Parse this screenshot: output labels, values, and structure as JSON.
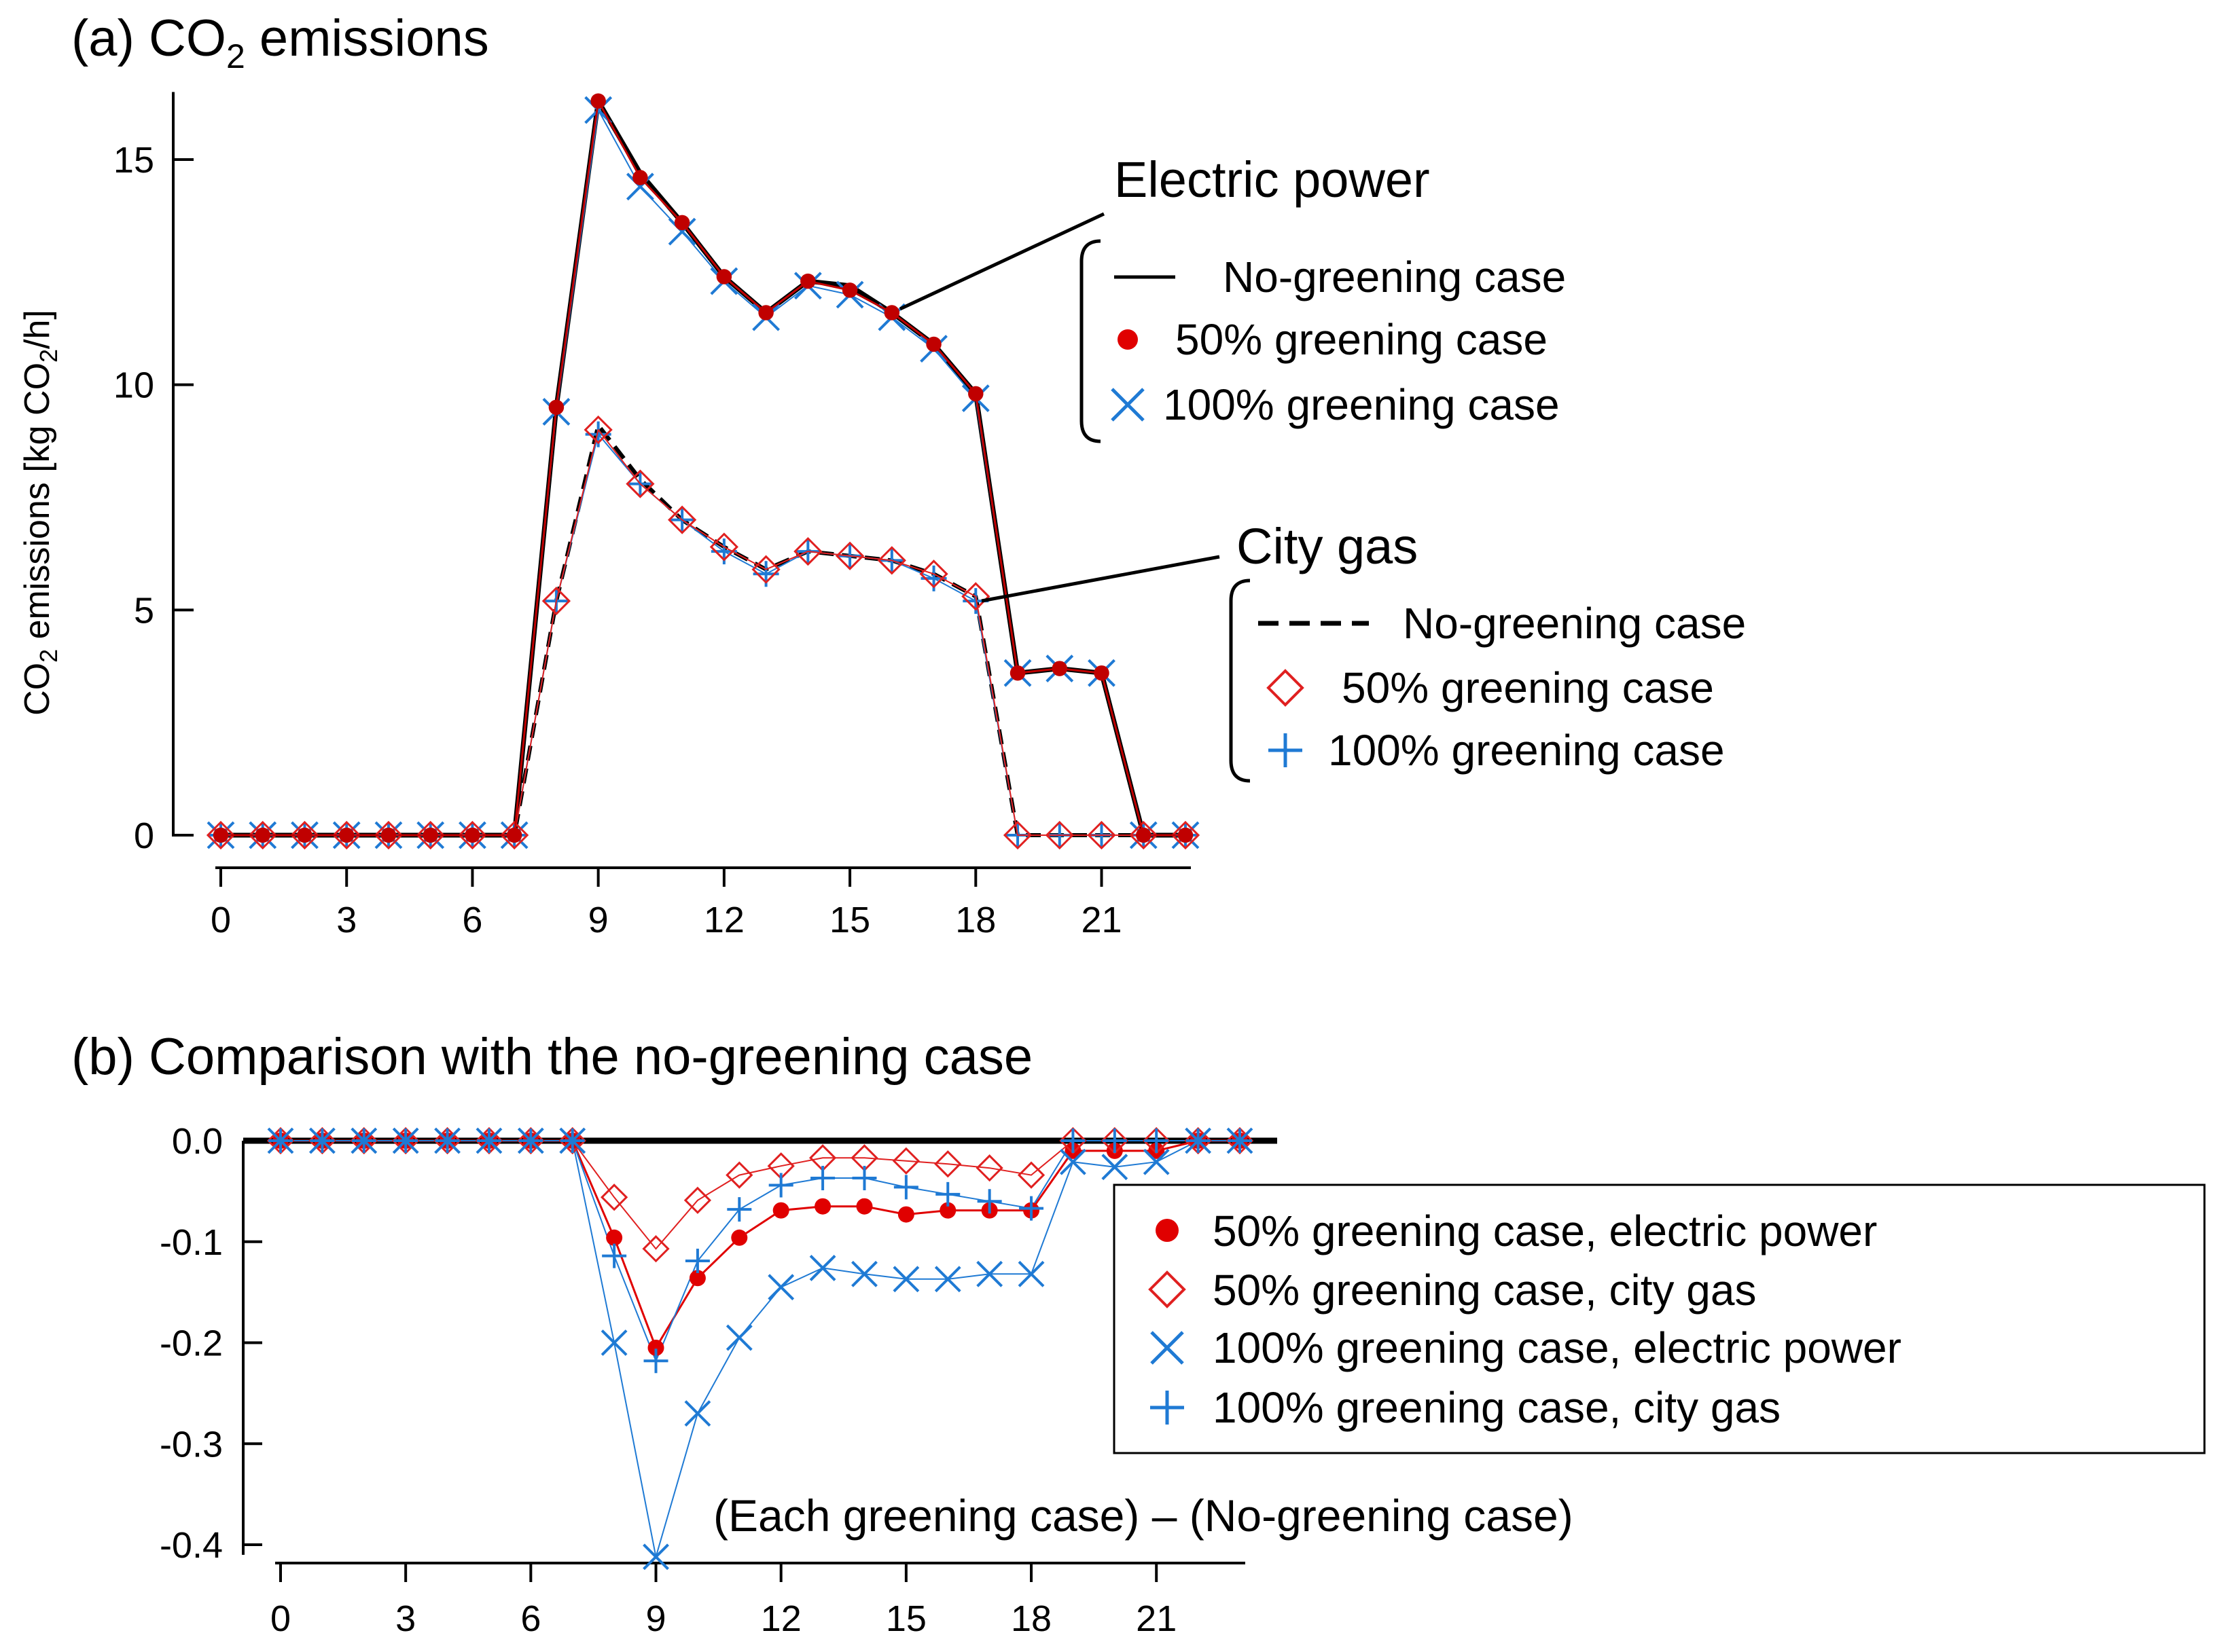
{
  "chart_data": [
    {
      "id": "a",
      "type": "line",
      "title": "(a) CO",
      "title_sub": "2",
      "title_rest": " emissions",
      "ylabel_pre": "CO",
      "ylabel_sub": "2",
      "ylabel_mid": " emissions [kg CO",
      "ylabel_sub2": "2",
      "ylabel_post": "/h]",
      "xlabel": "",
      "xlim": [
        0,
        23
      ],
      "ylim": [
        0,
        16.5
      ],
      "yticks": [
        0,
        5,
        10,
        15
      ],
      "xticks": [
        0,
        3,
        6,
        9,
        12,
        15,
        18,
        21
      ],
      "x": [
        0,
        1,
        2,
        3,
        4,
        5,
        6,
        7,
        8,
        9,
        10,
        11,
        12,
        13,
        14,
        15,
        16,
        17,
        18,
        19,
        20,
        21,
        22,
        23
      ],
      "series": [
        {
          "name": "Electric power No-greening case",
          "style": "solid",
          "color": "#000000",
          "values": [
            0,
            0,
            0,
            0,
            0,
            0,
            0,
            0,
            9.5,
            16.3,
            14.7,
            13.6,
            12.4,
            11.6,
            12.3,
            12.2,
            11.6,
            10.9,
            9.8,
            3.6,
            3.7,
            3.6,
            0,
            0
          ]
        },
        {
          "name": "Electric power 50% greening case",
          "style": "line-dot",
          "color": "#c00000",
          "values": [
            0,
            0,
            0,
            0,
            0,
            0,
            0,
            0,
            9.5,
            16.3,
            14.6,
            13.6,
            12.4,
            11.6,
            12.3,
            12.1,
            11.6,
            10.9,
            9.8,
            3.6,
            3.7,
            3.6,
            0,
            0
          ]
        },
        {
          "name": "Electric power 100% greening case",
          "style": "line-x",
          "color": "#1f7ad4",
          "values": [
            0,
            0,
            0,
            0,
            0,
            0,
            0,
            0,
            9.4,
            16.1,
            14.4,
            13.4,
            12.3,
            11.5,
            12.2,
            12.0,
            11.5,
            10.8,
            9.7,
            3.6,
            3.7,
            3.6,
            0,
            0
          ]
        },
        {
          "name": "City gas No-greening case",
          "style": "dashed",
          "color": "#000000",
          "values": [
            0,
            0,
            0,
            0,
            0,
            0,
            0,
            0,
            5.2,
            9.1,
            7.9,
            7.0,
            6.4,
            5.9,
            6.3,
            6.2,
            6.1,
            5.8,
            5.3,
            0,
            0,
            0,
            0,
            0
          ]
        },
        {
          "name": "City gas 50% greening case",
          "style": "line-diamond",
          "color": "#e02020",
          "values": [
            0,
            0,
            0,
            0,
            0,
            0,
            0,
            0,
            5.2,
            9.0,
            7.8,
            7.0,
            6.4,
            5.9,
            6.3,
            6.2,
            6.1,
            5.8,
            5.3,
            0,
            0,
            0,
            0,
            0
          ]
        },
        {
          "name": "City gas 100% greening case",
          "style": "line-plus",
          "color": "#1f7ad4",
          "values": [
            0,
            0,
            0,
            0,
            0,
            0,
            0,
            0,
            5.2,
            8.9,
            7.8,
            7.0,
            6.3,
            5.8,
            6.3,
            6.2,
            6.1,
            5.7,
            5.2,
            0,
            0,
            0,
            0,
            0
          ]
        }
      ],
      "annotations": {
        "electric": "Electric power",
        "gas": "City gas"
      },
      "legend_electric": [
        "No-greening case",
        "50% greening case",
        "100% greening case"
      ],
      "legend_gas": [
        "No-greening case",
        "50% greening case",
        "100% greening case"
      ]
    },
    {
      "id": "b",
      "type": "line",
      "title": "(b) Comparison with the no-greening case",
      "xlim": [
        0,
        23
      ],
      "ylim": [
        -0.41,
        0.0
      ],
      "yticks": [
        0.0,
        -0.1,
        -0.2,
        -0.3,
        -0.4
      ],
      "ytick_labels": [
        "0.0",
        "-0.1",
        "-0.2",
        "-0.3",
        "-0.4"
      ],
      "xticks": [
        0,
        3,
        6,
        9,
        12,
        15,
        18,
        21
      ],
      "x": [
        0,
        1,
        2,
        3,
        4,
        5,
        6,
        7,
        8,
        9,
        10,
        11,
        12,
        13,
        14,
        15,
        16,
        17,
        18,
        19,
        20,
        21,
        22,
        23
      ],
      "series": [
        {
          "name": "50% greening case, electric power",
          "style": "dot",
          "color": "#e00000",
          "values": [
            0,
            0,
            0,
            0,
            0,
            0,
            0,
            0,
            -0.096,
            -0.205,
            -0.136,
            -0.096,
            -0.069,
            -0.065,
            -0.065,
            -0.073,
            -0.069,
            -0.069,
            -0.069,
            -0.01,
            -0.01,
            -0.01,
            0,
            0
          ]
        },
        {
          "name": "50% greening case, city gas",
          "style": "diamond",
          "color": "#e02020",
          "values": [
            0,
            0,
            0,
            0,
            0,
            0,
            0,
            0,
            -0.056,
            -0.107,
            -0.059,
            -0.034,
            -0.025,
            -0.017,
            -0.017,
            -0.02,
            -0.023,
            -0.027,
            -0.034,
            0,
            0,
            0,
            0,
            0
          ]
        },
        {
          "name": "100% greening case, electric power",
          "style": "x",
          "color": "#1f7ad4",
          "values": [
            0,
            0,
            0,
            0,
            0,
            0,
            0,
            0,
            -0.2,
            -0.412,
            -0.27,
            -0.195,
            -0.145,
            -0.126,
            -0.132,
            -0.137,
            -0.137,
            -0.132,
            -0.132,
            -0.021,
            -0.026,
            -0.021,
            0,
            0
          ]
        },
        {
          "name": "100% greening case, city gas",
          "style": "plus",
          "color": "#1f7ad4",
          "values": [
            0,
            0,
            0,
            0,
            0,
            0,
            0,
            0,
            -0.114,
            -0.218,
            -0.119,
            -0.068,
            -0.044,
            -0.037,
            -0.037,
            -0.046,
            -0.053,
            -0.06,
            -0.067,
            0,
            0,
            0,
            0,
            0
          ]
        }
      ],
      "legend": [
        "50% greening case, electric power",
        "50% greening case, city gas",
        "100% greening case, electric power",
        "100% greening case, city gas"
      ],
      "note": "(Each greening case) – (No-greening case)"
    }
  ]
}
